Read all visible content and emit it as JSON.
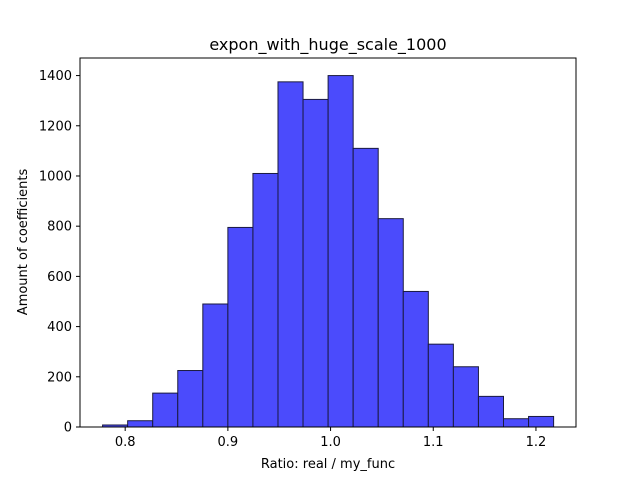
{
  "chart_data": {
    "type": "bar",
    "title": "expon_with_huge_scale_1000",
    "xlabel": "Ratio: real / my_func",
    "ylabel": "Amount of coefficients",
    "bin_edges": [
      0.778,
      0.8024,
      0.8268,
      0.8512,
      0.8756,
      0.9,
      0.9244,
      0.9488,
      0.9732,
      0.9976,
      1.022,
      1.0464,
      1.0708,
      1.0952,
      1.1196,
      1.144,
      1.1684,
      1.1928,
      1.2172
    ],
    "values": [
      8,
      25,
      135,
      225,
      490,
      795,
      1010,
      1375,
      1305,
      1400,
      1110,
      830,
      540,
      330,
      240,
      122,
      33,
      42
    ],
    "xlim": [
      0.756,
      1.239
    ],
    "ylim": [
      0,
      1470
    ],
    "xticks": [
      0.8,
      0.9,
      1.0,
      1.1,
      1.2
    ],
    "xtick_labels": [
      "0.8",
      "0.9",
      "1.0",
      "1.1",
      "1.2"
    ],
    "yticks": [
      0,
      200,
      400,
      600,
      800,
      1000,
      1200,
      1400
    ],
    "ytick_labels": [
      "0",
      "200",
      "400",
      "600",
      "800",
      "1000",
      "1200",
      "1400"
    ],
    "bar_color": "#4b4bfc",
    "edge_color": "#1a1a40",
    "grid": false,
    "legend": "none"
  }
}
